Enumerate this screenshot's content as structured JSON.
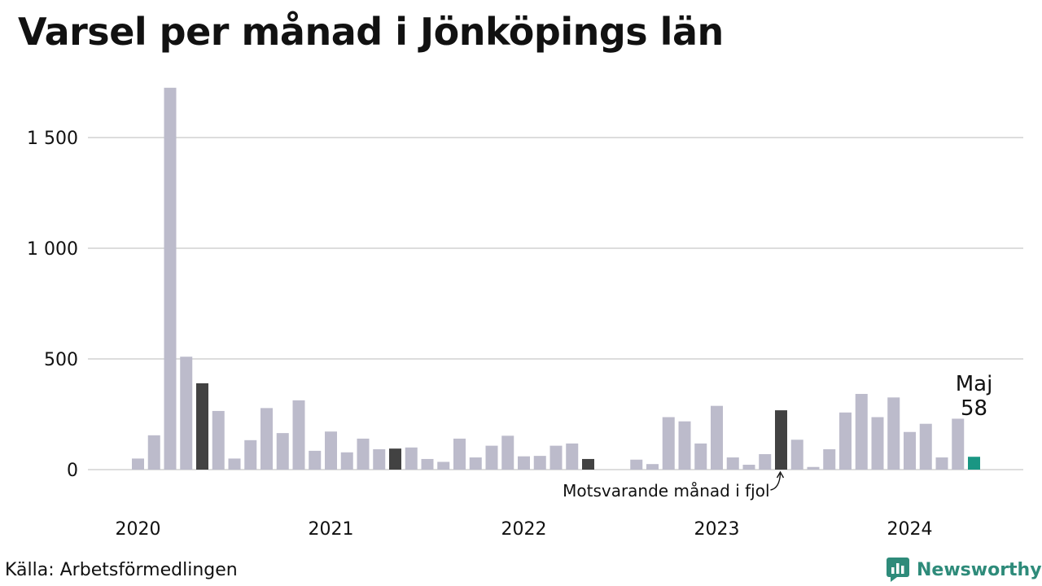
{
  "title": "Varsel per månad i Jönköpings län",
  "source": "Källa: Arbetsförmedlingen",
  "brand": {
    "name": "Newsworthy",
    "icon": "newsworthy-logo-icon",
    "color": "#2e8b7a"
  },
  "colors": {
    "bar": "#bcbbcb",
    "same_month": "#424242",
    "latest": "#1a9683",
    "grid": "#dddddd"
  },
  "chart_data": {
    "type": "bar",
    "title": "Varsel per månad i Jönköpings län",
    "xlabel": "",
    "ylabel": "",
    "ylim": [
      0,
      1750
    ],
    "yticks": [
      0,
      500,
      1000,
      1500
    ],
    "ytick_labels": [
      "0",
      "500",
      "1 000",
      "1 500"
    ],
    "x_year_labels": [
      "2020",
      "2021",
      "2022",
      "2023",
      "2024"
    ],
    "grid": true,
    "categories": [
      "2020-01",
      "2020-02",
      "2020-03",
      "2020-04",
      "2020-05",
      "2020-06",
      "2020-07",
      "2020-08",
      "2020-09",
      "2020-10",
      "2020-11",
      "2020-12",
      "2021-01",
      "2021-02",
      "2021-03",
      "2021-04",
      "2021-05",
      "2021-06",
      "2021-07",
      "2021-08",
      "2021-09",
      "2021-10",
      "2021-11",
      "2021-12",
      "2022-01",
      "2022-02",
      "2022-03",
      "2022-04",
      "2022-05",
      "2022-06",
      "2022-07",
      "2022-08",
      "2022-09",
      "2022-10",
      "2022-11",
      "2022-12",
      "2023-01",
      "2023-02",
      "2023-03",
      "2023-04",
      "2023-05",
      "2023-06",
      "2023-07",
      "2023-08",
      "2023-09",
      "2023-10",
      "2023-11",
      "2023-12",
      "2024-01",
      "2024-02",
      "2024-03",
      "2024-04",
      "2024-05"
    ],
    "values": [
      50,
      155,
      1725,
      510,
      390,
      265,
      50,
      133,
      278,
      165,
      313,
      85,
      172,
      78,
      140,
      92,
      95,
      100,
      48,
      35,
      140,
      55,
      108,
      153,
      60,
      62,
      108,
      118,
      48,
      0,
      0,
      45,
      25,
      237,
      218,
      118,
      288,
      55,
      22,
      70,
      268,
      135,
      12,
      92,
      258,
      342,
      237,
      326,
      170,
      207,
      55,
      230,
      58
    ],
    "highlight_same_month": [
      "2020-05",
      "2021-05",
      "2022-05",
      "2023-05"
    ],
    "highlight_latest": "2024-05",
    "latest_label": {
      "month": "Maj",
      "value": "58"
    },
    "annotation": {
      "text": "Motsvarande månad i fjol",
      "target": "2023-05"
    }
  }
}
